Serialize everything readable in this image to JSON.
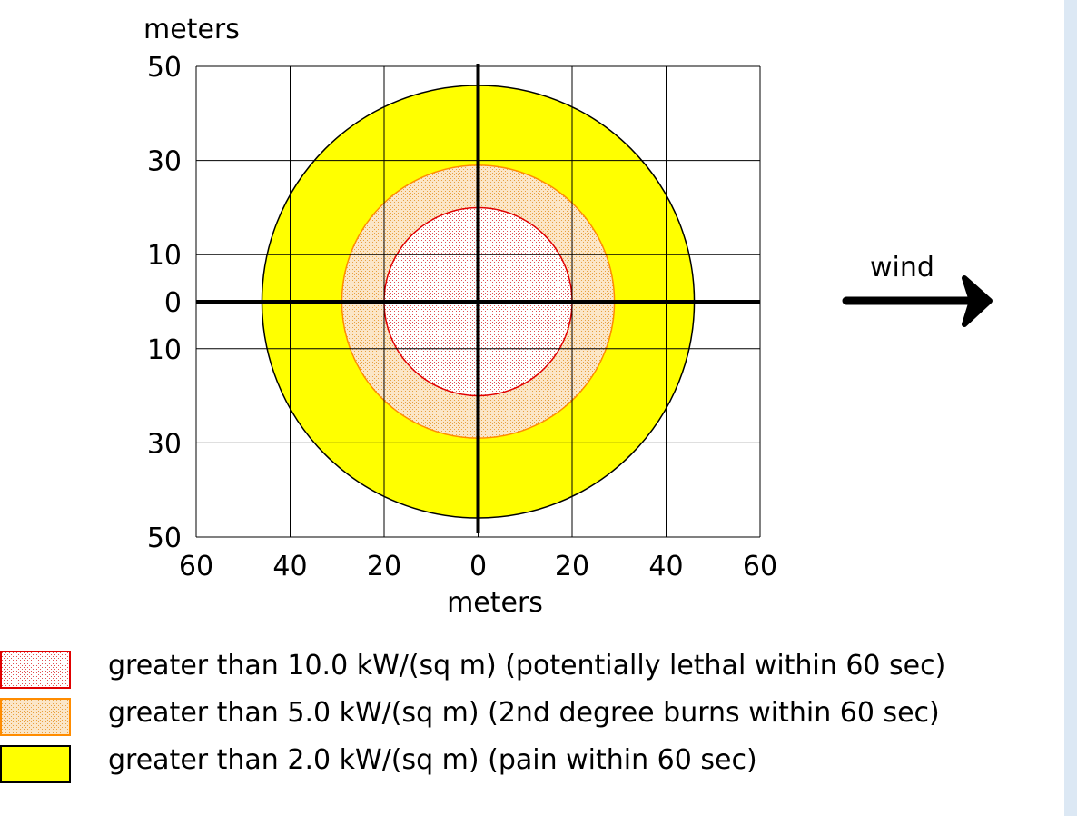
{
  "chart_data": {
    "type": "threat_zone",
    "ylabel": "meters",
    "xlabel": "meters",
    "xlim": [
      -60,
      60
    ],
    "ylim": [
      -50,
      50
    ],
    "grid": true,
    "x_ticks": [
      {
        "value": -60,
        "label": "60"
      },
      {
        "value": -40,
        "label": "40"
      },
      {
        "value": -20,
        "label": "20"
      },
      {
        "value": 0,
        "label": "0"
      },
      {
        "value": 20,
        "label": "20"
      },
      {
        "value": 40,
        "label": "40"
      },
      {
        "value": 60,
        "label": "60"
      }
    ],
    "y_ticks": [
      {
        "value": 50,
        "label": "50"
      },
      {
        "value": 30,
        "label": "30"
      },
      {
        "value": 10,
        "label": "10"
      },
      {
        "value": 0,
        "label": "0"
      },
      {
        "value": -10,
        "label": "10"
      },
      {
        "value": -30,
        "label": "30"
      },
      {
        "value": -50,
        "label": "50"
      }
    ],
    "zones": [
      {
        "radius": 46,
        "fill": "#ffff00",
        "stroke": "#000000",
        "pattern": "solid",
        "label": "greater than 2.0 kW/(sq m) (pain within 60 sec)"
      },
      {
        "radius": 29,
        "fill": "#f5ddb5",
        "stroke": "#ff8c00",
        "pattern": "dotted",
        "label": "greater than 5.0 kW/(sq m) (2nd degree burns within 60 sec)"
      },
      {
        "radius": 20,
        "fill": "#fbe9ea",
        "stroke": "#e00000",
        "pattern": "dotted",
        "label": "greater than 10.0 kW/(sq m) (potentially lethal within 60 sec)"
      }
    ],
    "annotations": {
      "wind_label": "wind",
      "wind_direction": "right"
    }
  }
}
